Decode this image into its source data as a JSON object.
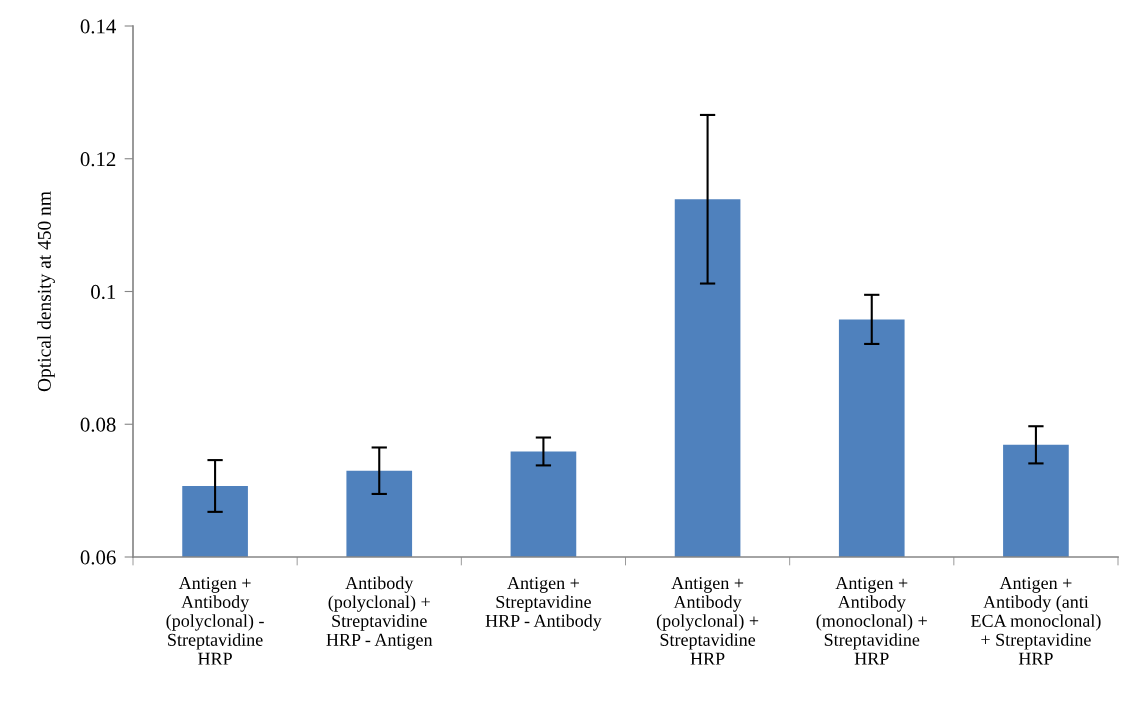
{
  "chart_data": {
    "type": "bar",
    "ylabel": "Optical density at 450 nm",
    "categories": [
      "Antigen +\nAntibody\n(polyclonal) -\nStreptavidine\nHRP",
      "Antibody\n(polyclonal) +\nStreptavidine\nHRP - Antigen",
      "Antigen +\nStreptavidine\nHRP - Antibody",
      "Antigen +\nAntibody\n(polyclonal) +\nStreptavidine\nHRP",
      "Antigen +\nAntibody\n(monoclonal) +\nStreptavidine\nHRP",
      "Antigen +\nAntibody (anti\nECA monoclonal)\n+ Streptavidine\nHRP"
    ],
    "values": [
      0.0707,
      0.073,
      0.0759,
      0.1139,
      0.0958,
      0.0769
    ],
    "errors": [
      0.0039,
      0.0035,
      0.0021,
      0.0127,
      0.0037,
      0.0028
    ],
    "color": "#4f81bd",
    "ylim": [
      0.06,
      0.14
    ],
    "yticks": [
      0.06,
      0.08,
      0.1,
      0.12,
      0.14
    ],
    "grid": false
  }
}
